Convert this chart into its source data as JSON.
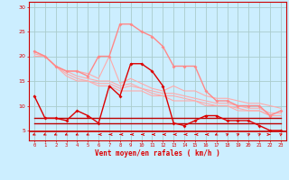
{
  "xlabel": "Vent moyen/en rafales ( km/h )",
  "bg_color": "#cceeff",
  "grid_color": "#aacccc",
  "x_ticks": [
    0,
    1,
    2,
    3,
    4,
    5,
    6,
    7,
    8,
    9,
    10,
    11,
    12,
    13,
    14,
    15,
    16,
    17,
    18,
    19,
    20,
    21,
    22,
    23
  ],
  "ylim": [
    3,
    31
  ],
  "yticks": [
    5,
    10,
    15,
    20,
    25,
    30
  ],
  "series_light_line1": [
    21.0,
    20.0,
    18.0,
    17.0,
    17.0,
    16.5,
    15.5,
    20.0,
    14.5,
    15.5,
    14.5,
    13.5,
    13.0,
    14.0,
    13.0,
    13.0,
    12.0,
    11.5,
    11.5,
    11.0,
    10.5,
    10.5,
    10.0,
    9.5
  ],
  "series_light_line2": [
    21.0,
    20.0,
    18.0,
    17.0,
    16.0,
    15.5,
    15.0,
    15.0,
    14.0,
    14.5,
    13.5,
    13.0,
    12.5,
    12.5,
    12.0,
    11.5,
    11.0,
    10.5,
    10.5,
    10.0,
    9.5,
    9.5,
    8.5,
    8.5
  ],
  "series_light_line3": [
    20.5,
    20.0,
    18.0,
    16.5,
    15.5,
    15.0,
    14.5,
    14.5,
    13.5,
    14.0,
    13.5,
    12.5,
    12.0,
    12.0,
    11.5,
    11.0,
    10.5,
    10.0,
    10.0,
    9.5,
    9.0,
    9.0,
    8.0,
    8.0
  ],
  "series_light_line4": [
    20.0,
    20.0,
    18.0,
    16.0,
    15.0,
    15.0,
    14.0,
    14.0,
    13.0,
    13.0,
    13.0,
    12.0,
    12.0,
    11.0,
    11.0,
    11.0,
    10.0,
    10.0,
    10.0,
    9.0,
    9.0,
    9.0,
    8.0,
    8.0
  ],
  "series_pink_rafales": [
    21.0,
    20.0,
    18.0,
    17.0,
    17.0,
    16.0,
    20.0,
    20.0,
    26.5,
    26.5,
    25.0,
    24.0,
    22.0,
    18.0,
    18.0,
    18.0,
    13.0,
    11.0,
    11.0,
    10.0,
    10.0,
    10.0,
    8.0,
    9.0
  ],
  "series_red_moyen": [
    12.0,
    7.5,
    7.5,
    7.0,
    9.0,
    8.0,
    6.5,
    14.0,
    12.0,
    18.5,
    18.5,
    17.0,
    14.0,
    6.5,
    6.0,
    7.0,
    8.0,
    8.0,
    7.0,
    7.0,
    7.0,
    6.0,
    5.0,
    5.0
  ],
  "series_flat1": [
    7.5,
    7.5,
    7.5,
    7.5,
    7.5,
    7.5,
    7.5,
    7.5,
    7.5,
    7.5,
    7.5,
    7.5,
    7.5,
    7.5,
    7.5,
    7.5,
    7.5,
    7.5,
    7.5,
    7.5,
    7.5,
    7.5,
    7.5,
    7.5
  ],
  "series_flat2": [
    6.5,
    6.5,
    6.5,
    6.5,
    6.5,
    6.5,
    6.5,
    6.5,
    6.5,
    6.5,
    6.5,
    6.5,
    6.5,
    6.5,
    6.5,
    6.5,
    6.5,
    6.5,
    6.5,
    6.5,
    6.5,
    6.5,
    6.5,
    6.5
  ],
  "arrow_angles_deg": [
    -135,
    -135,
    -135,
    -135,
    -135,
    -135,
    -90,
    -90,
    -90,
    -90,
    -90,
    -90,
    -90,
    -90,
    -90,
    -90,
    -90,
    -135,
    45,
    45,
    45,
    45,
    90,
    45
  ],
  "color_light": "#ffaaaa",
  "color_pink": "#ff8888",
  "color_red": "#dd0000",
  "color_darkred": "#bb0000",
  "color_axis": "#cc0000"
}
